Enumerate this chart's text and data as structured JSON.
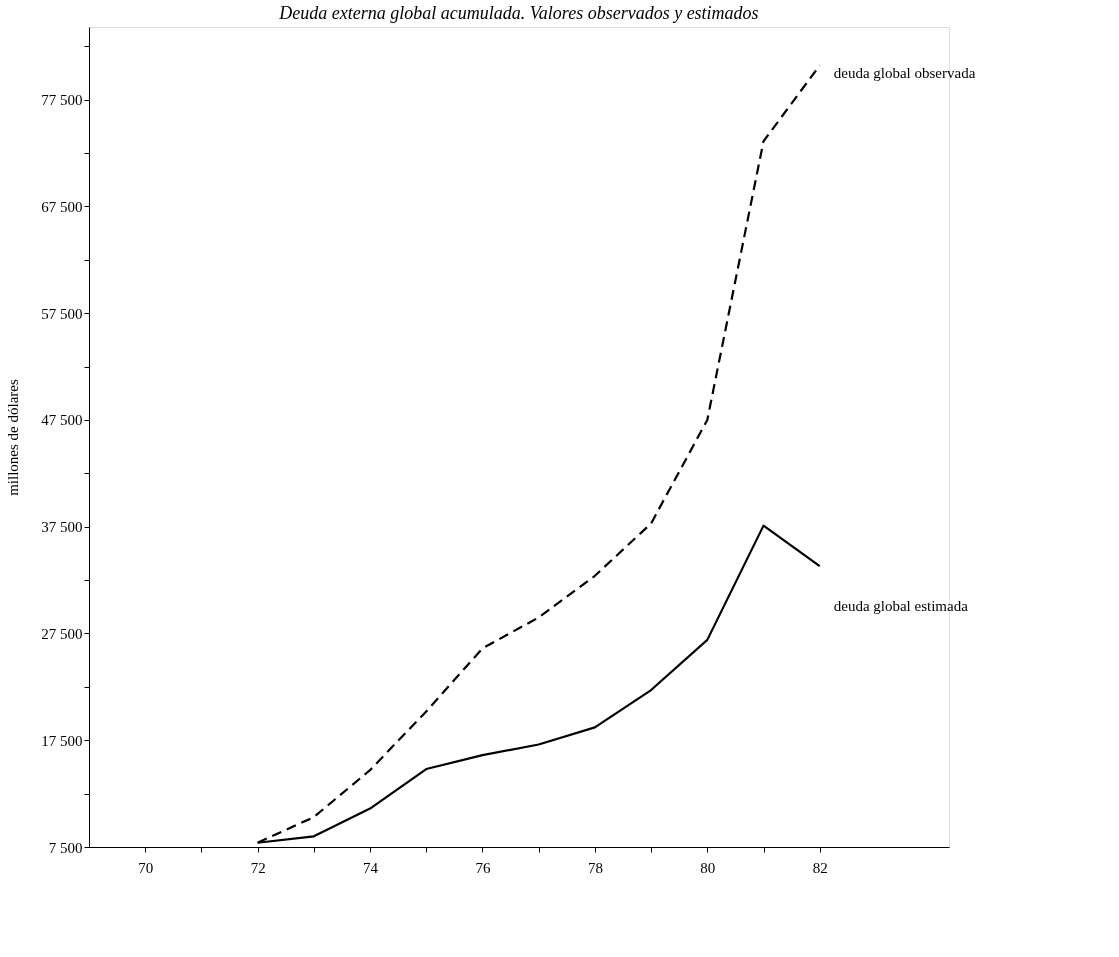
{
  "chart_data": {
    "type": "line",
    "title": "Deuda externa global acumulada. Valores observados y estimados",
    "ylabel": "millones de dólares",
    "xlim": [
      69,
      84.3
    ],
    "ylim": [
      7500,
      84300
    ],
    "xticks": [
      70,
      {
        "value": 71,
        "label": null
      },
      72,
      {
        "value": 73,
        "label": null
      },
      74,
      {
        "value": 75,
        "label": null
      },
      76,
      {
        "value": 77,
        "label": null
      },
      78,
      {
        "value": 79,
        "label": null
      },
      80,
      {
        "value": 81,
        "label": null
      },
      82
    ],
    "yticks": [
      {
        "value": 7500,
        "label": "7 500"
      },
      {
        "value": 12500,
        "label": null
      },
      {
        "value": 17500,
        "label": "17 500"
      },
      {
        "value": 22500,
        "label": null
      },
      {
        "value": 27500,
        "label": "27 500"
      },
      {
        "value": 32500,
        "label": null
      },
      {
        "value": 37500,
        "label": "37 500"
      },
      {
        "value": 42500,
        "label": null
      },
      {
        "value": 47500,
        "label": "47 500"
      },
      {
        "value": 52500,
        "label": null
      },
      {
        "value": 57500,
        "label": "57 500"
      },
      {
        "value": 62500,
        "label": null
      },
      {
        "value": 67500,
        "label": "67 500"
      },
      {
        "value": 72500,
        "label": null
      },
      {
        "value": 77500,
        "label": "77 500"
      },
      {
        "value": 82500,
        "label": null
      }
    ],
    "grid": false,
    "legend": false,
    "marker": "none",
    "series": [
      {
        "name": "deuda global observada",
        "color": "#000000",
        "line_style": "dashed",
        "x": [
          72,
          73,
          74,
          75,
          76,
          77,
          78,
          79,
          80,
          81,
          82
        ],
        "values": [
          7900,
          10300,
          14700,
          20200,
          26100,
          29000,
          32900,
          37800,
          47500,
          73600,
          80700
        ]
      },
      {
        "name": "deuda global estimada",
        "color": "#000000",
        "line_style": "solid",
        "x": [
          72,
          73,
          74,
          75,
          76,
          77,
          78,
          79,
          80,
          81,
          82
        ],
        "values": [
          7900,
          8500,
          11100,
          14800,
          16100,
          17100,
          18700,
          22200,
          26900,
          37600,
          33800
        ]
      }
    ]
  }
}
